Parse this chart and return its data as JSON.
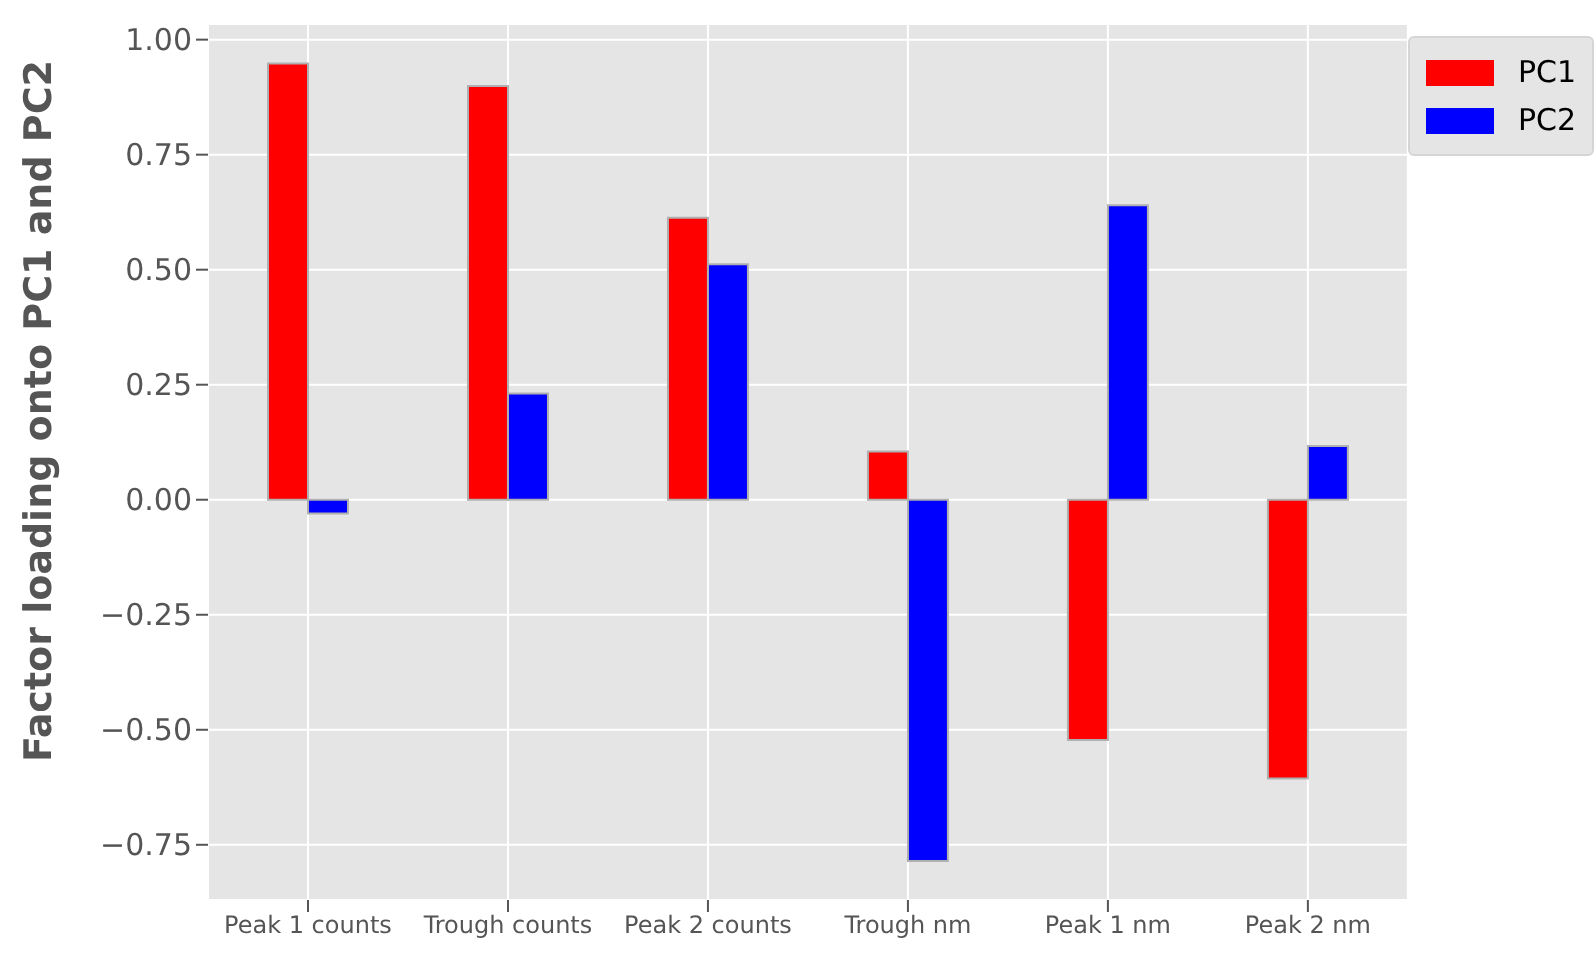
{
  "chart_data": {
    "type": "bar",
    "ylabel": "Factor loading onto PC1 and PC2",
    "categories": [
      "Peak 1 counts",
      "Trough counts",
      "Peak 2 counts",
      "Trough nm",
      "Peak 1 nm",
      "Peak 2 nm"
    ],
    "series": [
      {
        "name": "PC1",
        "color": "#ff0000",
        "values": [
          0.948,
          0.899,
          0.613,
          0.105,
          -0.522,
          -0.606
        ]
      },
      {
        "name": "PC2",
        "color": "#0000ff",
        "values": [
          -0.03,
          0.231,
          0.512,
          -0.785,
          0.64,
          0.117
        ]
      }
    ],
    "ylim": [
      -0.87,
      1.034
    ],
    "yticks": [
      {
        "value": -0.75,
        "label": "−0.75"
      },
      {
        "value": -0.5,
        "label": "−0.50"
      },
      {
        "value": -0.25,
        "label": "−0.25"
      },
      {
        "value": 0,
        "label": "0.00"
      },
      {
        "value": 0.25,
        "label": "0.25"
      },
      {
        "value": 0.5,
        "label": "0.50"
      },
      {
        "value": 0.75,
        "label": "0.75"
      },
      {
        "value": 1,
        "label": "1.00"
      }
    ],
    "grid": true,
    "legend": "top right"
  }
}
